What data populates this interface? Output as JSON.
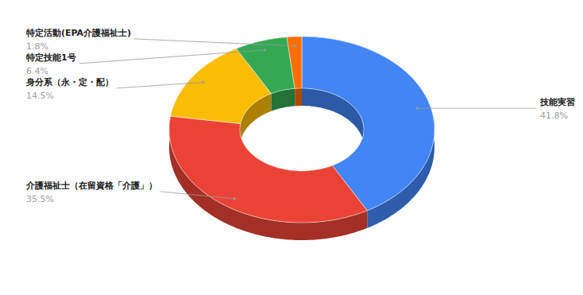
{
  "chart_data": {
    "type": "pie",
    "categories": [
      "技能実習",
      "介護福祉士（在留資格「介護」）",
      "身分系（永・定・配）",
      "特定技能1号",
      "特定活動(EPA介護福祉士)"
    ],
    "values": [
      41.8,
      35.5,
      14.5,
      6.4,
      1.8
    ],
    "value_labels": [
      "41.8%",
      "35.5%",
      "14.5%",
      "6.4%",
      "1.8%"
    ],
    "colors": [
      "#4285f4",
      "#ea4335",
      "#fbbc04",
      "#34a853",
      "#ff6d01"
    ],
    "data_labels": true
  }
}
